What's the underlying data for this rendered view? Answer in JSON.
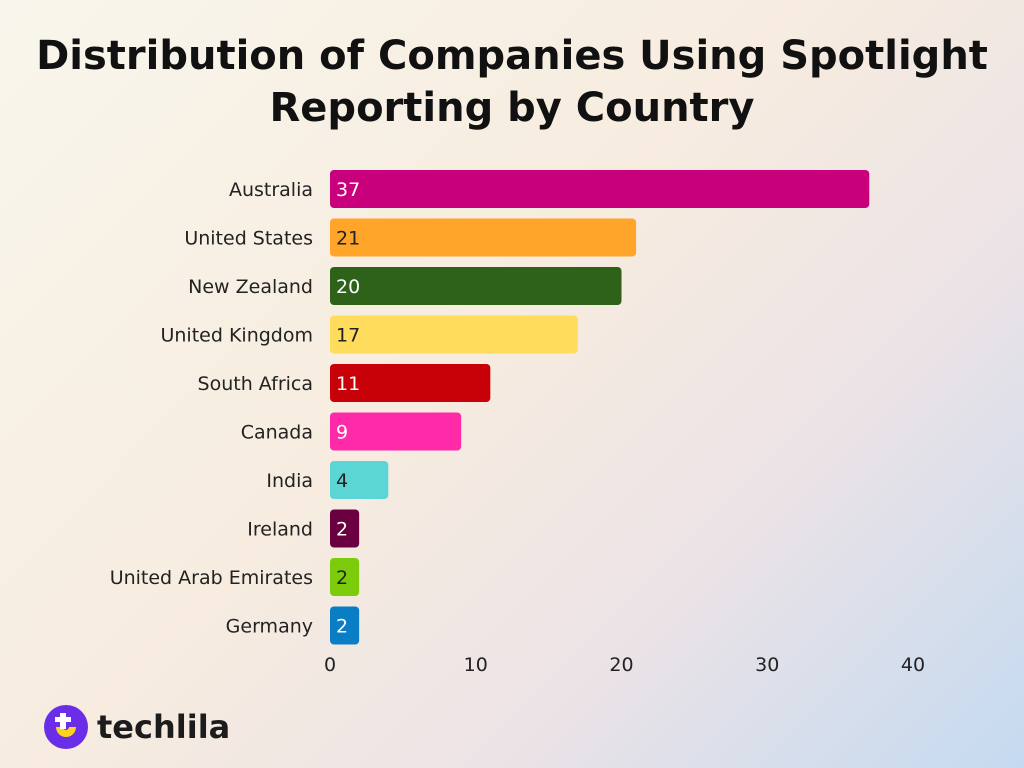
{
  "chart_data": {
    "type": "bar",
    "orientation": "horizontal",
    "title": "Distribution of Companies Using Spotlight Reporting by Country",
    "categories": [
      "Australia",
      "United States",
      "New Zealand",
      "United Kingdom",
      "South Africa",
      "Canada",
      "India",
      "Ireland",
      "United Arab Emirates",
      "Germany"
    ],
    "values": [
      37,
      21,
      20,
      17,
      11,
      9,
      4,
      2,
      2,
      2
    ],
    "colors": [
      "#c8007c",
      "#ffa52a",
      "#2e6218",
      "#ffdc5c",
      "#c80008",
      "#ff2aa8",
      "#5cd6d4",
      "#6a0040",
      "#7ccc0c",
      "#0a7ec4"
    ],
    "label_colors": [
      "#ffffff",
      "#222222",
      "#ffffff",
      "#222222",
      "#ffffff",
      "#ffffff",
      "#222222",
      "#ffffff",
      "#222222",
      "#ffffff"
    ],
    "xlim": [
      0,
      40
    ],
    "xticks": [
      "0",
      "10",
      "20",
      "30",
      "40"
    ],
    "grid": false,
    "legend": "none"
  },
  "brand": {
    "name": "techlila",
    "primary_color": "#6a2ee8",
    "accent_color": "#ffd21e"
  }
}
